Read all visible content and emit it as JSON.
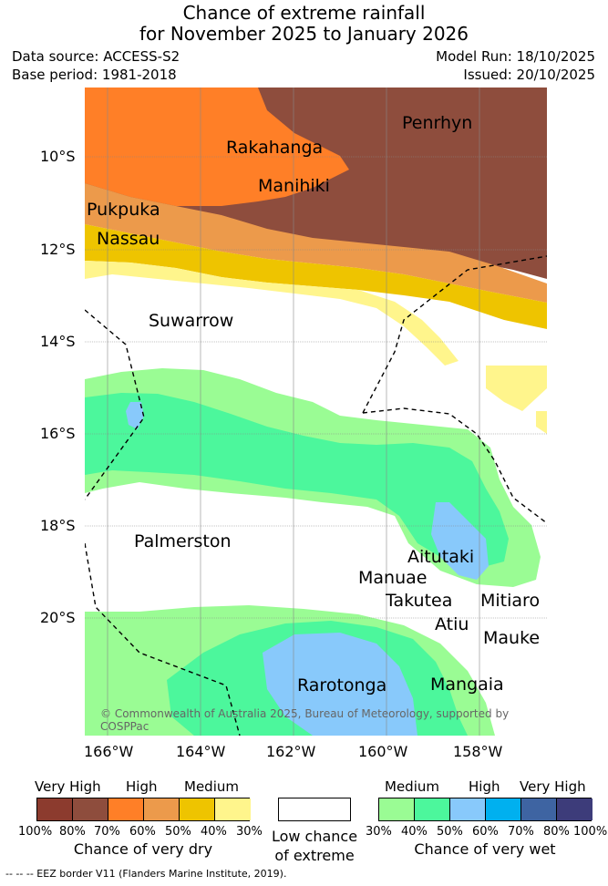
{
  "title": {
    "line1": "Chance of extreme rainfall",
    "line2": "for November 2025 to January 2026"
  },
  "meta": {
    "data_source": "Data source: ACCESS-S2",
    "base_period": "Base period: 1981-2018",
    "model_run": "Model Run: 18/10/2025",
    "issued": "Issued: 20/10/2025"
  },
  "map": {
    "lat_labels": [
      "10°S",
      "12°S",
      "14°S",
      "16°S",
      "18°S",
      "20°S"
    ],
    "lon_labels": [
      "166°W",
      "164°W",
      "162°W",
      "160°W",
      "158°W"
    ],
    "places": [
      "Penrhyn",
      "Rakahanga",
      "Manihiki",
      "Pukpuka",
      "Nassau",
      "Suwarrow",
      "Palmerston",
      "Aitutaki",
      "Manuae",
      "Takutea",
      "Mitiaro",
      "Atiu",
      "Mauke",
      "Rarotonga",
      "Mangaia"
    ],
    "copyright": "© Commonwealth of Australia 2025, Bureau of Meteorology, supported by COSPPac"
  },
  "legend": {
    "dry": {
      "categories": [
        "Very High",
        "High",
        "Medium"
      ],
      "colors": [
        "#8c3b2e",
        "#8e4d3d",
        "#ff7f27",
        "#ec9a4b",
        "#eec400",
        "#fff58c"
      ],
      "ticks": [
        "100%",
        "80%",
        "70%",
        "60%",
        "50%",
        "40%",
        "30%"
      ],
      "label": "Chance of very dry"
    },
    "low": {
      "color": "#ffffff",
      "label_line1": "Low chance",
      "label_line2": "of extreme"
    },
    "wet": {
      "categories": [
        "Medium",
        "High",
        "Very High"
      ],
      "colors": [
        "#9afc94",
        "#4cf79c",
        "#88c9fb",
        "#00b0ef",
        "#3e64a2",
        "#3d3c7a"
      ],
      "ticks": [
        "30%",
        "40%",
        "50%",
        "60%",
        "70%",
        "80%",
        "100%"
      ],
      "label": "Chance of very wet"
    }
  },
  "footnote": "-- -- -- EEZ border V11 (Flanders Marine Institute, 2019)."
}
